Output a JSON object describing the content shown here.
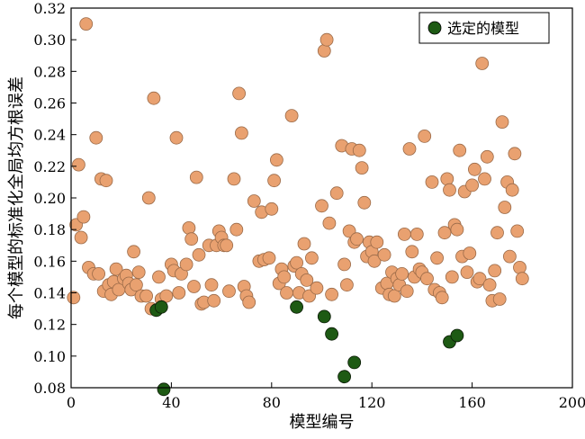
{
  "chart_data": {
    "type": "scatter",
    "xlabel": "模型编号",
    "ylabel": "每个模型的标准化全局均方根误差",
    "xlim": [
      0,
      200
    ],
    "ylim": [
      0.08,
      0.32
    ],
    "x_ticks": [
      "0",
      "40",
      "80",
      "120",
      "160",
      "200"
    ],
    "y_ticks": [
      "0.08",
      "0.10",
      "0.12",
      "0.14",
      "0.16",
      "0.18",
      "0.20",
      "0.22",
      "0.24",
      "0.26",
      "0.28",
      "0.30",
      "0.32"
    ],
    "legend": {
      "position": "top-right",
      "label": "选定的模型"
    },
    "series": [
      {
        "key": "all",
        "color": "#e9a170",
        "points": [
          [
            1,
            0.137
          ],
          [
            2,
            0.183
          ],
          [
            3,
            0.221
          ],
          [
            4,
            0.175
          ],
          [
            5,
            0.188
          ],
          [
            6,
            0.31
          ],
          [
            7,
            0.156
          ],
          [
            9,
            0.152
          ],
          [
            10,
            0.238
          ],
          [
            11,
            0.152
          ],
          [
            12,
            0.212
          ],
          [
            13,
            0.141
          ],
          [
            14,
            0.211
          ],
          [
            15,
            0.145
          ],
          [
            16,
            0.139
          ],
          [
            17,
            0.147
          ],
          [
            18,
            0.155
          ],
          [
            19,
            0.142
          ],
          [
            21,
            0.149
          ],
          [
            22,
            0.151
          ],
          [
            23,
            0.146
          ],
          [
            24,
            0.142
          ],
          [
            25,
            0.166
          ],
          [
            26,
            0.145
          ],
          [
            27,
            0.153
          ],
          [
            28,
            0.138
          ],
          [
            30,
            0.138
          ],
          [
            31,
            0.2
          ],
          [
            32,
            0.13
          ],
          [
            33,
            0.263
          ],
          [
            35,
            0.15
          ],
          [
            36,
            0.136
          ],
          [
            38,
            0.138
          ],
          [
            40,
            0.158
          ],
          [
            41,
            0.154
          ],
          [
            42,
            0.238
          ],
          [
            43,
            0.14
          ],
          [
            44,
            0.152
          ],
          [
            46,
            0.158
          ],
          [
            47,
            0.181
          ],
          [
            48,
            0.174
          ],
          [
            49,
            0.144
          ],
          [
            50,
            0.213
          ],
          [
            51,
            0.164
          ],
          [
            52,
            0.133
          ],
          [
            53,
            0.134
          ],
          [
            55,
            0.17
          ],
          [
            56,
            0.145
          ],
          [
            57,
            0.135
          ],
          [
            58,
            0.17
          ],
          [
            59,
            0.179
          ],
          [
            60,
            0.175
          ],
          [
            61,
            0.17
          ],
          [
            62,
            0.17
          ],
          [
            63,
            0.141
          ],
          [
            65,
            0.212
          ],
          [
            66,
            0.18
          ],
          [
            67,
            0.266
          ],
          [
            68,
            0.241
          ],
          [
            69,
            0.144
          ],
          [
            70,
            0.138
          ],
          [
            71,
            0.134
          ],
          [
            73,
            0.198
          ],
          [
            75,
            0.16
          ],
          [
            76,
            0.191
          ],
          [
            77,
            0.161
          ],
          [
            79,
            0.162
          ],
          [
            80,
            0.193
          ],
          [
            81,
            0.211
          ],
          [
            82,
            0.224
          ],
          [
            83,
            0.146
          ],
          [
            84,
            0.155
          ],
          [
            85,
            0.15
          ],
          [
            86,
            0.14
          ],
          [
            88,
            0.252
          ],
          [
            89,
            0.157
          ],
          [
            90,
            0.159
          ],
          [
            91,
            0.14
          ],
          [
            92,
            0.152
          ],
          [
            93,
            0.171
          ],
          [
            94,
            0.148
          ],
          [
            95,
            0.138
          ],
          [
            96,
            0.162
          ],
          [
            98,
            0.143
          ],
          [
            100,
            0.195
          ],
          [
            101,
            0.293
          ],
          [
            102,
            0.3
          ],
          [
            103,
            0.184
          ],
          [
            104,
            0.139
          ],
          [
            106,
            0.203
          ],
          [
            108,
            0.233
          ],
          [
            109,
            0.158
          ],
          [
            110,
            0.145
          ],
          [
            111,
            0.179
          ],
          [
            112,
            0.231
          ],
          [
            113,
            0.172
          ],
          [
            114,
            0.174
          ],
          [
            115,
            0.23
          ],
          [
            116,
            0.219
          ],
          [
            117,
            0.197
          ],
          [
            118,
            0.163
          ],
          [
            119,
            0.172
          ],
          [
            120,
            0.166
          ],
          [
            121,
            0.16
          ],
          [
            122,
            0.172
          ],
          [
            124,
            0.143
          ],
          [
            125,
            0.164
          ],
          [
            126,
            0.146
          ],
          [
            127,
            0.139
          ],
          [
            128,
            0.153
          ],
          [
            129,
            0.138
          ],
          [
            130,
            0.149
          ],
          [
            131,
            0.145
          ],
          [
            132,
            0.152
          ],
          [
            133,
            0.177
          ],
          [
            134,
            0.141
          ],
          [
            135,
            0.231
          ],
          [
            136,
            0.166
          ],
          [
            137,
            0.15
          ],
          [
            138,
            0.177
          ],
          [
            139,
            0.155
          ],
          [
            140,
            0.153
          ],
          [
            141,
            0.239
          ],
          [
            142,
            0.149
          ],
          [
            144,
            0.21
          ],
          [
            145,
            0.142
          ],
          [
            146,
            0.162
          ],
          [
            147,
            0.14
          ],
          [
            148,
            0.137
          ],
          [
            149,
            0.178
          ],
          [
            150,
            0.212
          ],
          [
            151,
            0.205
          ],
          [
            152,
            0.15
          ],
          [
            153,
            0.183
          ],
          [
            154,
            0.18
          ],
          [
            155,
            0.23
          ],
          [
            156,
            0.163
          ],
          [
            157,
            0.204
          ],
          [
            158,
            0.153
          ],
          [
            159,
            0.165
          ],
          [
            160,
            0.208
          ],
          [
            161,
            0.218
          ],
          [
            162,
            0.147
          ],
          [
            163,
            0.149
          ],
          [
            164,
            0.285
          ],
          [
            165,
            0.212
          ],
          [
            166,
            0.226
          ],
          [
            167,
            0.145
          ],
          [
            168,
            0.135
          ],
          [
            169,
            0.154
          ],
          [
            170,
            0.178
          ],
          [
            171,
            0.136
          ],
          [
            172,
            0.248
          ],
          [
            173,
            0.194
          ],
          [
            174,
            0.21
          ],
          [
            175,
            0.163
          ],
          [
            176,
            0.205
          ],
          [
            177,
            0.228
          ],
          [
            178,
            0.179
          ],
          [
            179,
            0.156
          ],
          [
            180,
            0.149
          ]
        ]
      },
      {
        "key": "selected",
        "name": "选定的模型",
        "color": "#1e5a14",
        "points": [
          [
            34,
            0.129
          ],
          [
            36,
            0.131
          ],
          [
            37,
            0.079
          ],
          [
            90,
            0.131
          ],
          [
            101,
            0.125
          ],
          [
            104,
            0.114
          ],
          [
            109,
            0.087
          ],
          [
            113,
            0.096
          ],
          [
            151,
            0.109
          ],
          [
            154,
            0.113
          ]
        ]
      }
    ]
  }
}
